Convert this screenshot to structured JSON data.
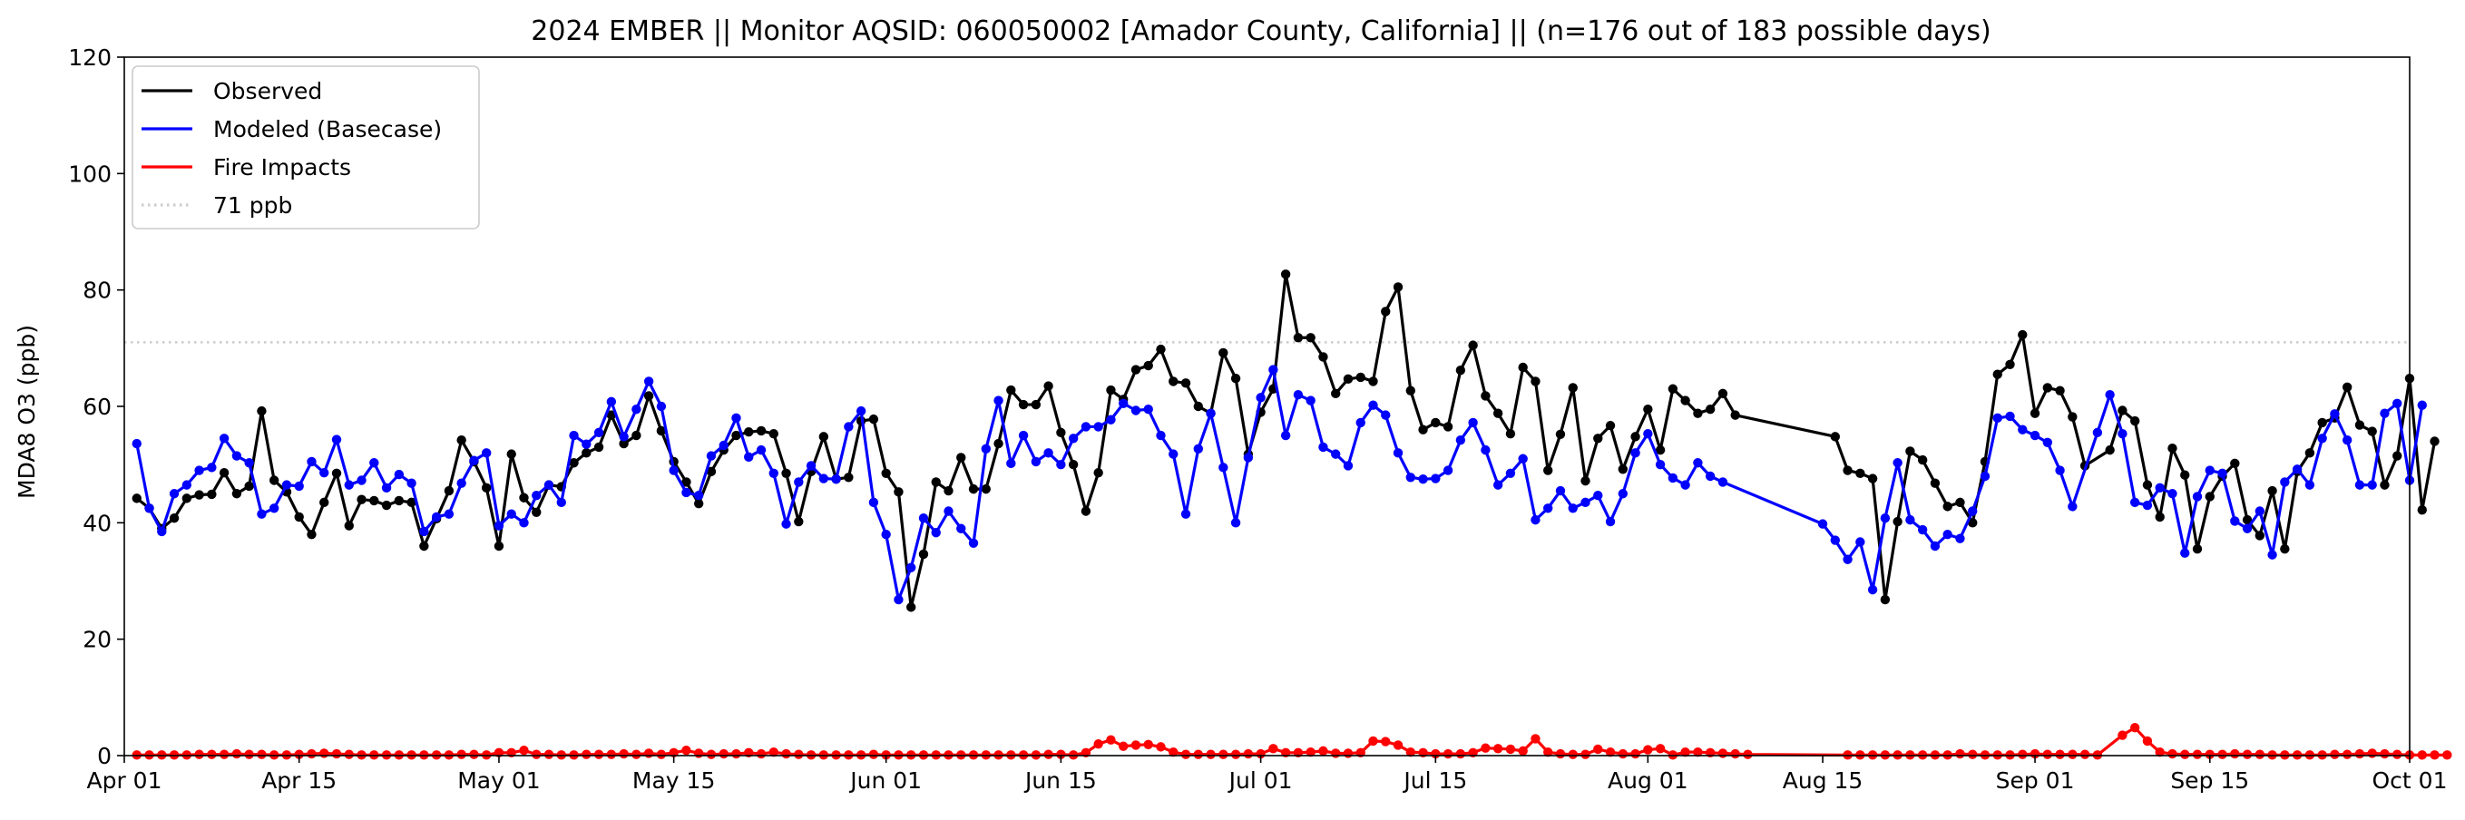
{
  "chart_data": {
    "type": "line",
    "title": "2024 EMBER || Monitor AQSID: 060050002 [Amador County, California] || (n=176 out of 183 possible days)",
    "xlabel": "",
    "ylabel": "MDA8 O3 (ppb)",
    "ylim": [
      0,
      120
    ],
    "yticks": [
      0,
      20,
      40,
      60,
      80,
      100,
      120
    ],
    "xlim": [
      "2024-04-01",
      "2024-10-01"
    ],
    "xticks": [
      {
        "date": "2024-04-01",
        "label": "Apr 01"
      },
      {
        "date": "2024-04-15",
        "label": "Apr 15"
      },
      {
        "date": "2024-05-01",
        "label": "May 01"
      },
      {
        "date": "2024-05-15",
        "label": "May 15"
      },
      {
        "date": "2024-06-01",
        "label": "Jun 01"
      },
      {
        "date": "2024-06-15",
        "label": "Jun 15"
      },
      {
        "date": "2024-07-01",
        "label": "Jul 01"
      },
      {
        "date": "2024-07-15",
        "label": "Jul 15"
      },
      {
        "date": "2024-08-01",
        "label": "Aug 01"
      },
      {
        "date": "2024-08-15",
        "label": "Aug 15"
      },
      {
        "date": "2024-09-01",
        "label": "Sep 01"
      },
      {
        "date": "2024-09-15",
        "label": "Sep 15"
      },
      {
        "date": "2024-10-01",
        "label": "Oct 01"
      }
    ],
    "grid": false,
    "legend_position": "top-left",
    "legend": [
      {
        "label": "Observed",
        "color": "#000000",
        "style": "solid"
      },
      {
        "label": "Modeled (Basecase)",
        "color": "#0000ff",
        "style": "solid"
      },
      {
        "label": "Fire Impacts",
        "color": "#ff0000",
        "style": "solid"
      },
      {
        "label": "71 ppb",
        "color": "#cccccc",
        "style": "dotted"
      }
    ],
    "reference_line": {
      "value": 71,
      "color": "#cccccc",
      "style": "dotted"
    },
    "gap": {
      "from": "2024-08-07",
      "to": "2024-08-14"
    },
    "series": [
      {
        "name": "Observed",
        "color": "#000000",
        "start": "2024-04-02",
        "values": [
          44.2,
          42.5,
          39.0,
          40.8,
          44.2,
          44.8,
          44.9,
          48.6,
          45.0,
          46.3,
          59.2,
          47.3,
          45.3,
          41.0,
          38.0,
          43.5,
          48.5,
          39.5,
          44.0,
          43.8,
          43.0,
          43.8,
          43.5,
          36.0,
          40.7,
          45.5,
          54.2,
          50.5,
          46.0,
          36.0,
          51.8,
          44.3,
          41.8,
          46.5,
          46.2,
          50.3,
          52.0,
          53.0,
          58.5,
          53.6,
          55.0,
          61.8,
          55.8,
          50.5,
          47.0,
          43.3,
          48.8,
          52.5,
          55.0,
          55.6,
          55.8,
          55.3,
          48.5,
          40.2,
          48.8,
          54.8,
          47.5,
          47.8,
          57.5,
          57.8,
          48.5,
          45.3,
          25.5,
          34.6,
          47.0,
          45.5,
          51.2,
          45.8,
          45.8,
          53.6,
          62.8,
          60.3,
          60.3,
          63.5,
          55.5,
          50.0,
          42.0,
          48.6,
          62.8,
          61.2,
          66.3,
          67.0,
          69.8,
          64.3,
          64.0,
          60.0,
          58.8,
          69.2,
          64.8,
          51.8,
          59.0,
          63.0,
          82.7,
          71.8,
          71.8,
          68.5,
          62.2,
          64.7,
          65.0,
          64.3,
          76.3,
          80.5,
          62.7,
          56.0,
          57.2,
          56.5,
          66.2,
          70.5,
          61.8,
          58.8,
          55.3,
          66.7,
          64.3,
          49.0,
          55.2,
          63.2,
          47.2,
          54.5,
          56.7,
          49.2,
          54.8,
          59.5,
          52.5,
          63.0,
          61.0,
          58.8,
          59.5,
          62.2,
          58.5,
          null,
          null,
          null,
          null,
          null,
          null,
          null,
          54.8,
          49.0,
          48.5,
          47.6,
          26.8,
          40.2,
          52.3,
          50.8,
          46.8,
          42.8,
          43.5,
          40.0,
          50.5,
          65.5,
          67.2,
          72.3,
          58.8,
          63.2,
          62.7,
          58.2,
          49.8,
          null,
          52.5,
          59.3,
          57.5,
          46.5,
          41.0,
          52.8,
          48.2,
          35.5,
          44.5,
          48.0,
          50.2,
          40.5,
          37.8,
          45.5,
          35.5,
          48.8,
          52.0,
          57.2,
          58.0,
          63.3,
          56.8,
          55.7,
          46.5,
          51.5,
          64.8,
          42.2,
          54.0
        ]
      },
      {
        "name": "Modeled (Basecase)",
        "color": "#0000ff",
        "start": "2024-04-02",
        "values": [
          53.6,
          42.5,
          38.5,
          45.0,
          46.5,
          49.0,
          49.5,
          54.5,
          51.5,
          50.3,
          41.5,
          42.5,
          46.5,
          46.3,
          50.5,
          48.6,
          54.3,
          46.5,
          47.3,
          50.3,
          46.0,
          48.3,
          46.8,
          38.5,
          41.0,
          41.5,
          46.8,
          50.7,
          52.0,
          39.5,
          41.5,
          40.0,
          44.7,
          46.5,
          43.5,
          55.0,
          53.5,
          55.5,
          60.8,
          54.8,
          59.5,
          64.3,
          60.0,
          49.0,
          45.2,
          44.7,
          51.5,
          53.3,
          58.0,
          51.3,
          52.5,
          48.5,
          39.8,
          47.0,
          49.8,
          47.6,
          47.5,
          56.5,
          59.2,
          43.5,
          38.0,
          26.8,
          32.3,
          40.8,
          38.3,
          42.0,
          39.0,
          36.5,
          52.7,
          61.0,
          50.2,
          55.0,
          50.5,
          52.0,
          50.0,
          54.5,
          56.5,
          56.5,
          57.7,
          60.5,
          59.3,
          59.5,
          55.0,
          51.8,
          41.5,
          52.7,
          58.8,
          49.5,
          40.0,
          51.2,
          61.5,
          66.3,
          55.0,
          62.0,
          61.0,
          53.0,
          51.8,
          49.8,
          57.2,
          60.2,
          58.5,
          52.0,
          47.8,
          47.5,
          47.6,
          49.0,
          54.2,
          57.2,
          52.5,
          46.5,
          48.5,
          51.0,
          40.5,
          42.5,
          45.5,
          42.5,
          43.5,
          44.7,
          40.2,
          45.0,
          52.0,
          55.3,
          50.0,
          47.7,
          46.5,
          50.3,
          48.0,
          47.0,
          null,
          null,
          null,
          null,
          null,
          null,
          null,
          39.8,
          37.0,
          33.7,
          36.7,
          28.5,
          40.8,
          50.3,
          40.5,
          38.8,
          36.0,
          38.0,
          37.3,
          42.0,
          48.0,
          58.0,
          58.3,
          56.0,
          55.0,
          53.8,
          49.0,
          42.8,
          null,
          55.5,
          62.0,
          55.3,
          43.5,
          43.0,
          46.0,
          45.0,
          34.8,
          44.5,
          49.0,
          48.5,
          40.3,
          39.0,
          42.0,
          34.5,
          47.0,
          49.2,
          46.5,
          54.5,
          58.7,
          54.2,
          46.5,
          46.5,
          58.8,
          60.5,
          47.3,
          60.2
        ]
      },
      {
        "name": "Fire Impacts",
        "color": "#ff0000",
        "start": "2024-04-02",
        "values": [
          0.1,
          0.1,
          0.1,
          0.1,
          0.1,
          0.2,
          0.2,
          0.2,
          0.3,
          0.2,
          0.2,
          0.1,
          0.1,
          0.2,
          0.3,
          0.4,
          0.3,
          0.2,
          0.1,
          0.1,
          0.1,
          0.1,
          0.1,
          0.1,
          0.1,
          0.1,
          0.2,
          0.2,
          0.1,
          0.5,
          0.5,
          0.9,
          0.2,
          0.2,
          0.1,
          0.1,
          0.2,
          0.2,
          0.2,
          0.3,
          0.2,
          0.4,
          0.2,
          0.5,
          0.9,
          0.4,
          0.2,
          0.3,
          0.3,
          0.5,
          0.3,
          0.6,
          0.3,
          0.2,
          0.1,
          0.1,
          0.1,
          0.1,
          0.1,
          0.2,
          0.1,
          0.1,
          0.1,
          0.1,
          0.1,
          0.1,
          0.1,
          0.1,
          0.1,
          0.1,
          0.1,
          0.1,
          0.1,
          0.2,
          0.2,
          0.1,
          0.5,
          2.0,
          2.7,
          1.6,
          1.8,
          1.9,
          1.5,
          0.6,
          0.2,
          0.2,
          0.2,
          0.2,
          0.2,
          0.3,
          0.3,
          1.2,
          0.5,
          0.5,
          0.6,
          0.8,
          0.4,
          0.4,
          0.5,
          2.5,
          2.4,
          1.8,
          0.6,
          0.5,
          0.3,
          0.3,
          0.3,
          0.5,
          1.3,
          1.2,
          1.1,
          0.8,
          2.9,
          0.6,
          0.3,
          0.2,
          0.2,
          1.1,
          0.6,
          0.3,
          0.3,
          1.0,
          1.2,
          0.1,
          0.6,
          0.6,
          0.5,
          0.4,
          0.3,
          0.2,
          null,
          null,
          null,
          null,
          null,
          null,
          null,
          0.1,
          0.1,
          0.1,
          0.1,
          0.1,
          0.1,
          0.1,
          0.1,
          0.1,
          0.3,
          0.2,
          0.1,
          0.1,
          0.1,
          0.2,
          0.3,
          0.2,
          0.2,
          0.2,
          0.2,
          0.1,
          null,
          3.5,
          4.8,
          2.5,
          0.6,
          0.3,
          0.2,
          0.2,
          0.2,
          0.2,
          0.3,
          0.2,
          0.2,
          0.1,
          0.1,
          0.1,
          0.1,
          0.1,
          0.2,
          0.2,
          0.3,
          0.4,
          0.3,
          0.2,
          0.1,
          0.1,
          0.1,
          0.1
        ]
      }
    ]
  }
}
